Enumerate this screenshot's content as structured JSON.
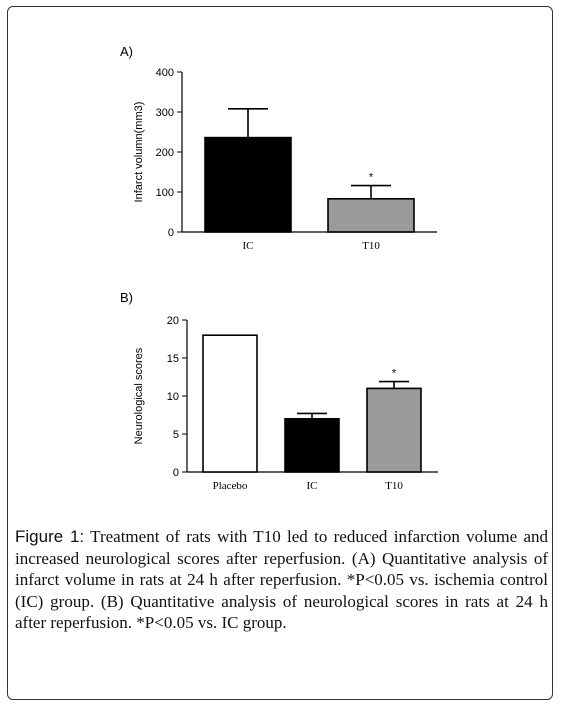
{
  "figure_caption": {
    "lead": "Figure 1:",
    "text": "Treatment of rats with T10 led to reduced infarction volume and increased neurological scores after reperfusion. (A) Quantitative analysis of infarct volume in rats at 24 h after reperfusion. *P<0.05 vs. ischemia control (IC) group. (B) Quantitative analysis of neurological scores in rats at 24 h after reperfusion. *P<0.05 vs. IC group."
  },
  "panels": [
    {
      "label": "A)"
    },
    {
      "label": "B)"
    }
  ],
  "chart_data": [
    {
      "type": "bar",
      "panel": "A)",
      "categories": [
        "IC",
        "T10"
      ],
      "values": [
        236,
        83
      ],
      "errors": [
        72,
        33
      ],
      "significance": [
        "",
        "*"
      ],
      "colors": [
        "#000000",
        "#9a9a9a"
      ],
      "ylabel": "Infarct volumn(mm3)",
      "ylim": [
        0,
        400
      ],
      "yticks": [
        0,
        100,
        200,
        300,
        400
      ],
      "ytick_labels": [
        "0",
        "100",
        "200",
        "300",
        "400"
      ]
    },
    {
      "type": "bar",
      "panel": "B)",
      "categories": [
        "Placebo",
        "IC",
        "T10"
      ],
      "values": [
        18,
        7,
        11
      ],
      "errors": [
        0,
        0.7,
        0.9
      ],
      "significance": [
        "",
        "",
        "*"
      ],
      "colors": [
        "#ffffff",
        "#000000",
        "#9a9a9a"
      ],
      "ylabel": "Neurological scores",
      "ylim": [
        0,
        20
      ],
      "yticks": [
        0,
        5,
        10,
        15,
        20
      ],
      "ytick_labels": [
        "0",
        "5",
        "10",
        "15",
        "20"
      ]
    }
  ]
}
